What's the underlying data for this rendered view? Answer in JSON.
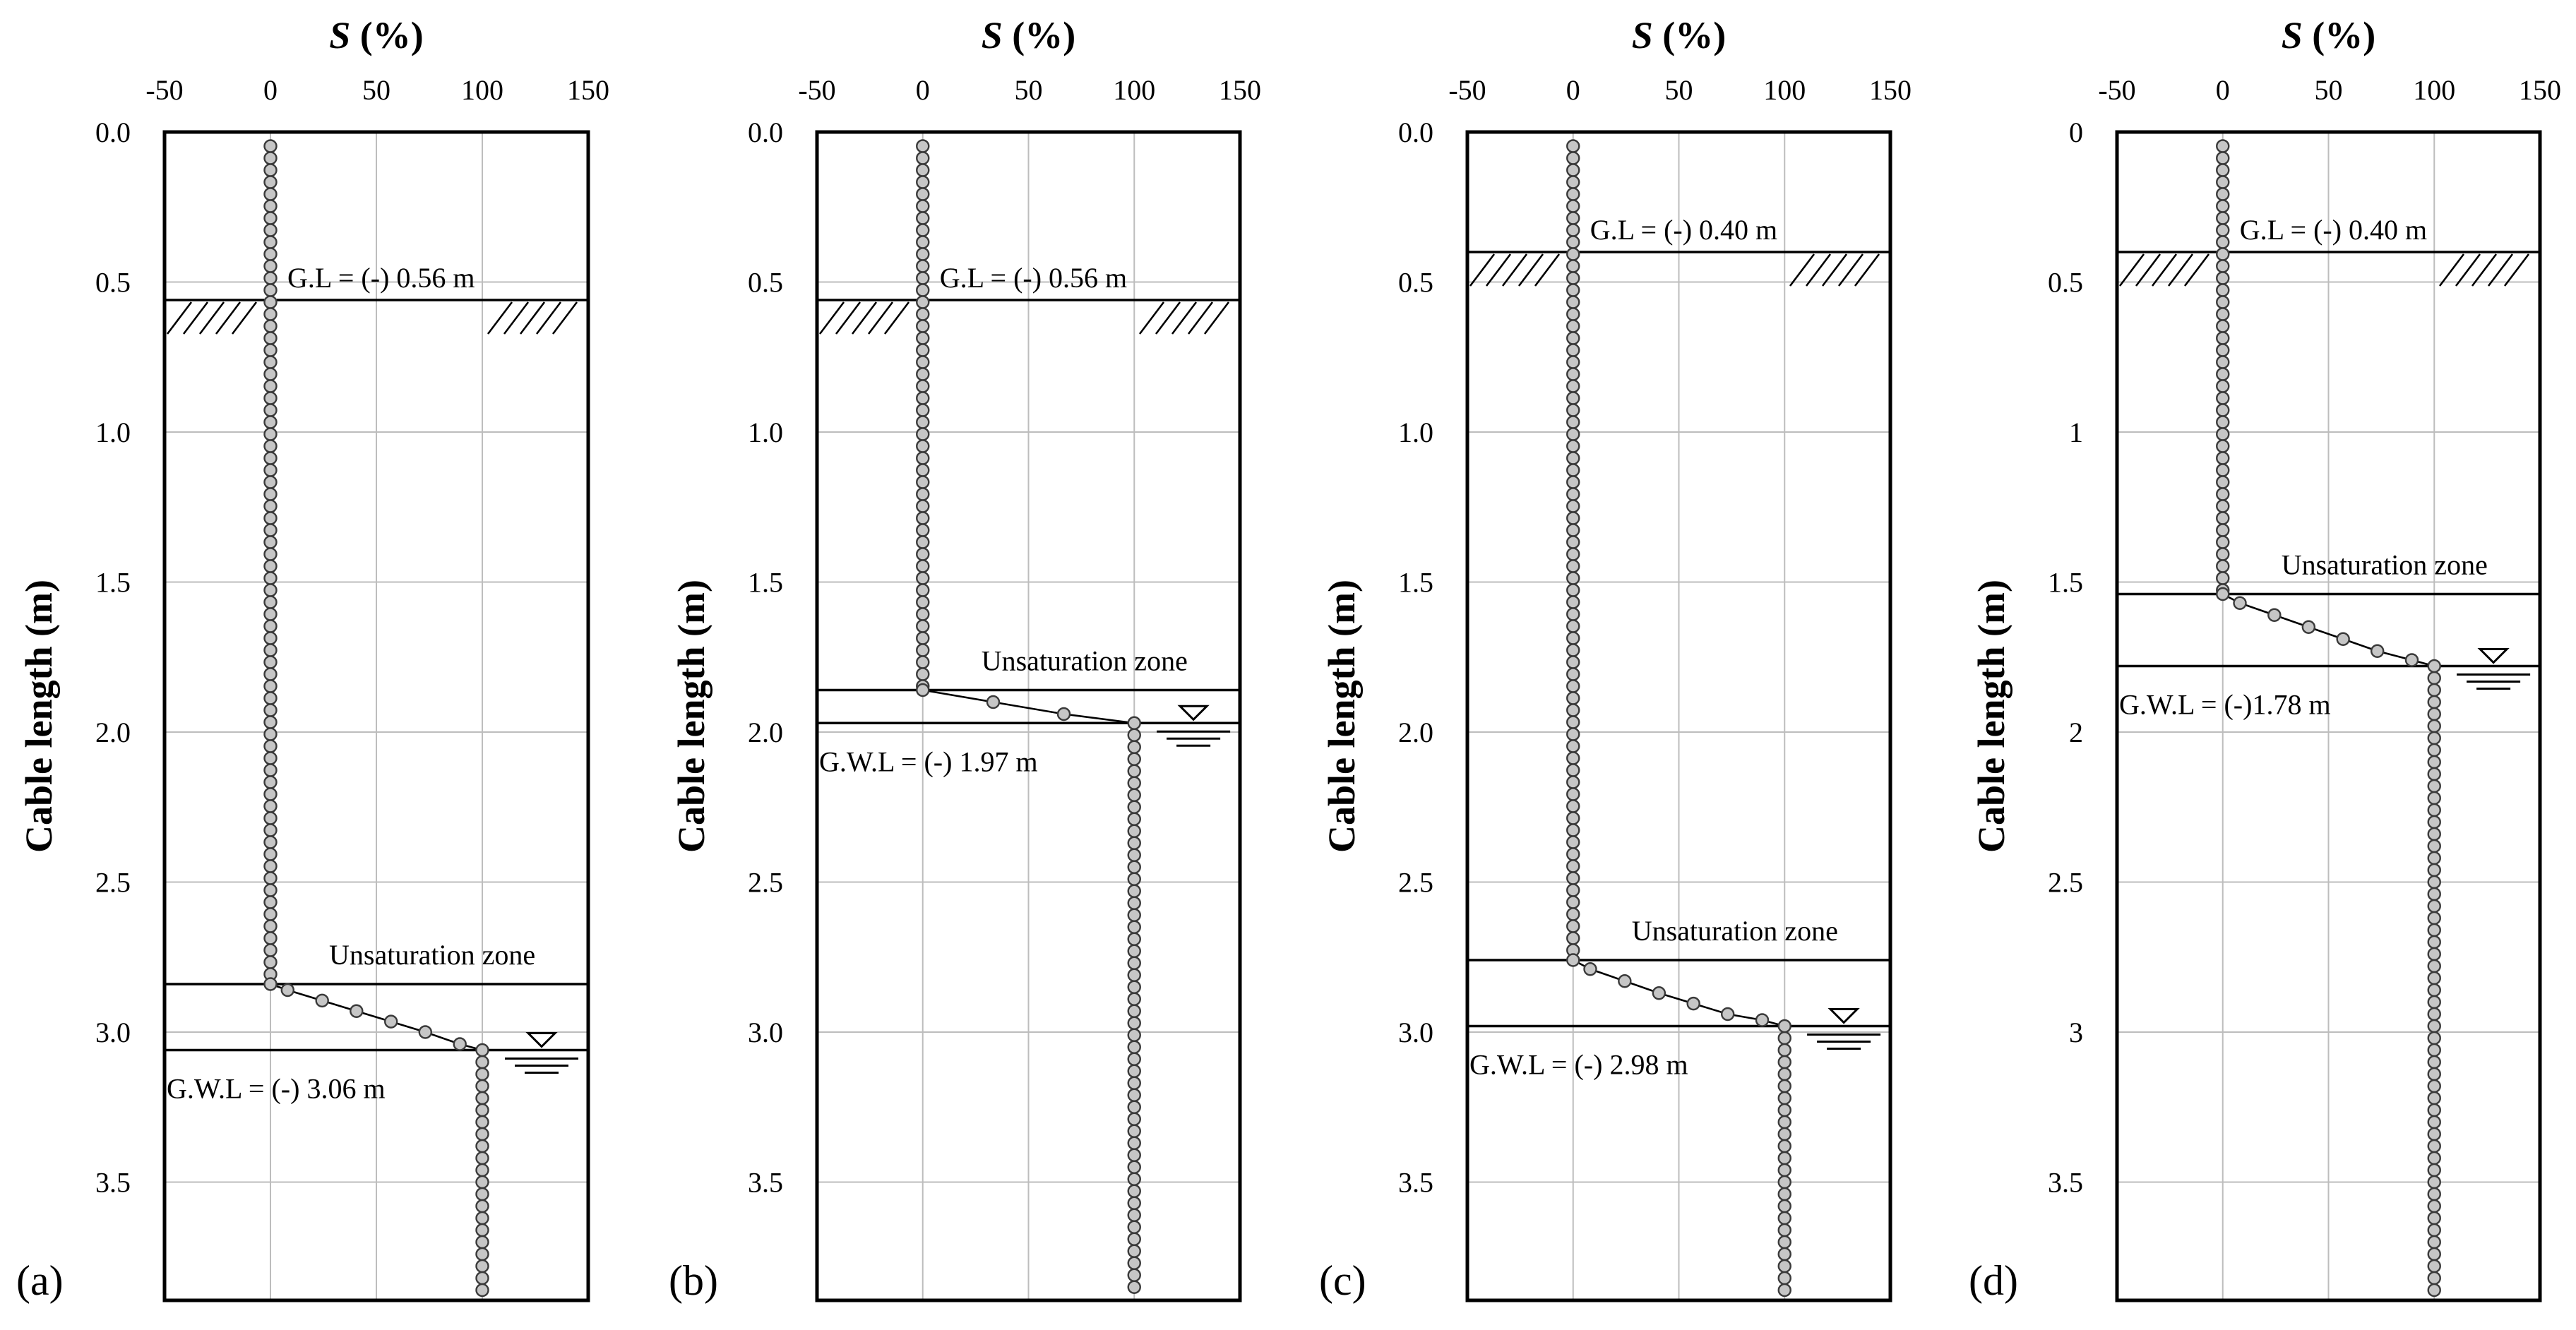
{
  "chart_data": [
    {
      "type": "scatter",
      "panel_label": "(a)",
      "title": "",
      "xlabel_italic": "S",
      "xlabel_rest": " (%)",
      "ylabel": "Cable length (m)",
      "xlim": [
        -50,
        150
      ],
      "ylim": [
        0,
        3.9
      ],
      "xticks": [
        -50,
        0,
        50,
        100,
        150
      ],
      "yticks": [
        0,
        0.5,
        1,
        1.5,
        2,
        2.5,
        3,
        3.5
      ],
      "ytick_labels": [
        "0.0",
        "0.5",
        "1.0",
        "1.5",
        "2.0",
        "2.5",
        "3.0",
        "3.5"
      ],
      "grid": true,
      "gl_depth": 0.56,
      "gl_label": "G.L = (-) 0.56 m",
      "unsat_depth": 2.84,
      "unsat_label": "Unsaturation zone",
      "gwl_depth": 3.06,
      "gwl_label": "G.W.L = (-) 3.06 m",
      "series": [
        {
          "x": [
            0,
            8.1,
            24.4,
            40.6,
            56.9,
            73.1,
            89.4,
            100
          ],
          "y": [
            2.84,
            2.86,
            2.895,
            2.93,
            2.965,
            3.0,
            3.04,
            3.06
          ]
        }
      ]
    },
    {
      "type": "scatter",
      "panel_label": "(b)",
      "title": "",
      "xlabel_italic": "S",
      "xlabel_rest": " (%)",
      "ylabel": "Cable length (m)",
      "xlim": [
        -50,
        150
      ],
      "ylim": [
        0,
        3.9
      ],
      "xticks": [
        -50,
        0,
        50,
        100,
        150
      ],
      "yticks": [
        0,
        0.5,
        1,
        1.5,
        2,
        2.5,
        3,
        3.5
      ],
      "ytick_labels": [
        "0.0",
        "0.5",
        "1.0",
        "1.5",
        "2.0",
        "2.5",
        "3.0",
        "3.5"
      ],
      "grid": true,
      "gl_depth": 0.56,
      "gl_label": "G.L = (-) 0.56 m",
      "unsat_depth": 1.86,
      "unsat_label": "Unsaturation zone",
      "gwl_depth": 1.97,
      "gwl_label": "G.W.L = (-) 1.97 m",
      "series": [
        {
          "x": [
            0,
            33.3,
            66.7,
            100
          ],
          "y": [
            1.86,
            1.9,
            1.94,
            1.97
          ]
        }
      ]
    },
    {
      "type": "scatter",
      "panel_label": "(c)",
      "title": "",
      "xlabel_italic": "S",
      "xlabel_rest": " (%)",
      "ylabel": "Cable length (m)",
      "xlim": [
        -50,
        150
      ],
      "ylim": [
        0,
        3.9
      ],
      "xticks": [
        -50,
        0,
        50,
        100,
        150
      ],
      "yticks": [
        0,
        0.5,
        1,
        1.5,
        2,
        2.5,
        3,
        3.5
      ],
      "ytick_labels": [
        "0.0",
        "0.5",
        "1.0",
        "1.5",
        "2.0",
        "2.5",
        "3.0",
        "3.5"
      ],
      "grid": true,
      "gl_depth": 0.4,
      "gl_label": "G.L = (-) 0.40 m",
      "unsat_depth": 2.76,
      "unsat_label": "Unsaturation zone",
      "gwl_depth": 2.98,
      "gwl_label": "G.W.L = (-) 2.98 m",
      "series": [
        {
          "x": [
            0,
            8.1,
            24.4,
            40.6,
            56.9,
            73.1,
            89.4,
            100
          ],
          "y": [
            2.76,
            2.79,
            2.83,
            2.87,
            2.905,
            2.94,
            2.96,
            2.98
          ]
        }
      ]
    },
    {
      "type": "scatter",
      "panel_label": "(d)",
      "title": "",
      "xlabel_italic": "S",
      "xlabel_rest": " (%)",
      "ylabel": "Cable length (m)",
      "xlim": [
        -50,
        150
      ],
      "ylim": [
        0,
        3.9
      ],
      "xticks": [
        -50,
        0,
        50,
        100,
        150
      ],
      "yticks": [
        0,
        0.5,
        1,
        1.5,
        2,
        2.5,
        3,
        3.5
      ],
      "ytick_labels": [
        "0",
        "0.5",
        "1",
        "1.5",
        "2",
        "2.5",
        "3",
        "3.5"
      ],
      "grid": true,
      "gl_depth": 0.4,
      "gl_label": "G.L = (-) 0.40 m",
      "unsat_depth": 1.54,
      "unsat_label": "Unsaturation zone",
      "gwl_depth": 1.78,
      "gwl_label": "G.W.L = (-)1.78 m",
      "series": [
        {
          "x": [
            0,
            8.1,
            24.4,
            40.6,
            56.9,
            73.1,
            89.4,
            100
          ],
          "y": [
            1.54,
            1.57,
            1.61,
            1.65,
            1.69,
            1.73,
            1.76,
            1.78
          ]
        }
      ]
    }
  ]
}
